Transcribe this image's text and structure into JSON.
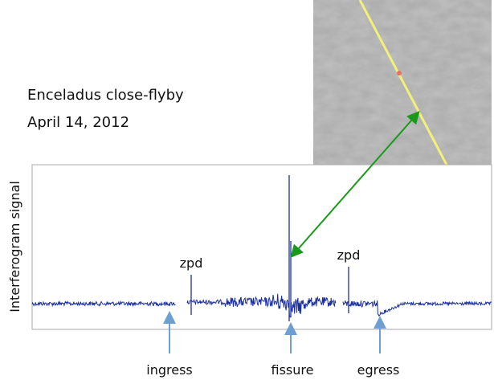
{
  "heading": {
    "line1": "Enceladus close-flyby",
    "line2": "April 14, 2012"
  },
  "y_axis_label": "Interferogram signal",
  "annotations": {
    "zpd_left": "zpd",
    "zpd_right": "zpd",
    "ingress": "ingress",
    "fissure": "fissure",
    "egress": "egress"
  }
}
